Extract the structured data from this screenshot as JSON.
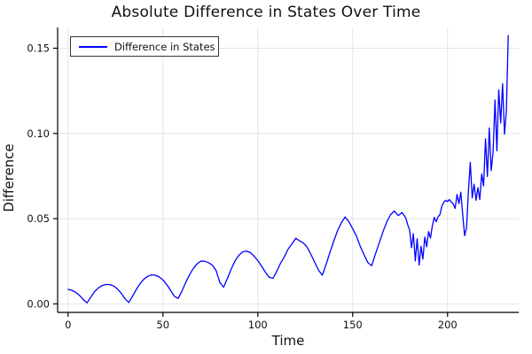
{
  "colors": {
    "line": "#0000ff",
    "grid": "#e4e4e4",
    "spine": "#000000",
    "text": "#111111",
    "background": "#ffffff",
    "legend_border": "#333333"
  },
  "chart_data": {
    "type": "line",
    "title": "Absolute Difference in States Over Time",
    "xlabel": "Time",
    "ylabel": "Difference",
    "xlim": [
      -5.5,
      237.5
    ],
    "ylim": [
      -0.005,
      0.1622
    ],
    "grid": true,
    "legend_position": "top-left",
    "xticks": {
      "values": [
        0,
        50,
        100,
        150,
        200
      ],
      "labels": [
        "0",
        "50",
        "100",
        "150",
        "200"
      ]
    },
    "yticks": {
      "values": [
        0.0,
        0.05,
        0.1,
        0.15
      ],
      "labels": [
        "0.00",
        "0.05",
        "0.10",
        "0.15"
      ]
    },
    "series": [
      {
        "name": "Difference in States",
        "color": "#0000ff",
        "points": [
          [
            0,
            0.0085
          ],
          [
            2,
            0.008
          ],
          [
            4,
            0.0068
          ],
          [
            6,
            0.005
          ],
          [
            8,
            0.0026
          ],
          [
            10,
            0.0006
          ],
          [
            12,
            0.004
          ],
          [
            14,
            0.0072
          ],
          [
            16,
            0.0094
          ],
          [
            18,
            0.0108
          ],
          [
            20,
            0.0114
          ],
          [
            22,
            0.0113
          ],
          [
            24,
            0.0105
          ],
          [
            26,
            0.0088
          ],
          [
            28,
            0.0062
          ],
          [
            30,
            0.003
          ],
          [
            32,
            0.0008
          ],
          [
            34,
            0.0045
          ],
          [
            36,
            0.0085
          ],
          [
            38,
            0.012
          ],
          [
            40,
            0.0146
          ],
          [
            42,
            0.0162
          ],
          [
            44,
            0.017
          ],
          [
            46,
            0.0168
          ],
          [
            48,
            0.0158
          ],
          [
            50,
            0.014
          ],
          [
            52,
            0.0114
          ],
          [
            54,
            0.008
          ],
          [
            56,
            0.0045
          ],
          [
            58,
            0.0032
          ],
          [
            60,
            0.0075
          ],
          [
            62,
            0.0125
          ],
          [
            64,
            0.017
          ],
          [
            66,
            0.0208
          ],
          [
            68,
            0.0235
          ],
          [
            70,
            0.0251
          ],
          [
            72,
            0.025
          ],
          [
            74,
            0.0242
          ],
          [
            76,
            0.0228
          ],
          [
            78,
            0.0196
          ],
          [
            80,
            0.0125
          ],
          [
            82,
            0.0098
          ],
          [
            84,
            0.015
          ],
          [
            86,
            0.0205
          ],
          [
            88,
            0.0252
          ],
          [
            90,
            0.0285
          ],
          [
            92,
            0.0305
          ],
          [
            94,
            0.031
          ],
          [
            96,
            0.0302
          ],
          [
            98,
            0.028
          ],
          [
            100,
            0.0254
          ],
          [
            102,
            0.0222
          ],
          [
            104,
            0.0186
          ],
          [
            106,
            0.0156
          ],
          [
            108,
            0.015
          ],
          [
            110,
            0.0192
          ],
          [
            112,
            0.0238
          ],
          [
            114,
            0.0276
          ],
          [
            116,
            0.0322
          ],
          [
            118,
            0.0352
          ],
          [
            120,
            0.0385
          ],
          [
            122,
            0.037
          ],
          [
            124,
            0.0358
          ],
          [
            126,
            0.0332
          ],
          [
            128,
            0.029
          ],
          [
            130,
            0.0243
          ],
          [
            132,
            0.0198
          ],
          [
            134,
            0.0168
          ],
          [
            136,
            0.0232
          ],
          [
            138,
            0.0302
          ],
          [
            140,
            0.0368
          ],
          [
            142,
            0.0428
          ],
          [
            144,
            0.0475
          ],
          [
            146,
            0.051
          ],
          [
            148,
            0.0482
          ],
          [
            150,
            0.044
          ],
          [
            152,
            0.0398
          ],
          [
            154,
            0.0338
          ],
          [
            156,
            0.0288
          ],
          [
            158,
            0.0242
          ],
          [
            160,
            0.0224
          ],
          [
            162,
            0.0292
          ],
          [
            164,
            0.0358
          ],
          [
            166,
            0.0424
          ],
          [
            168,
            0.0482
          ],
          [
            170,
            0.0524
          ],
          [
            172,
            0.0545
          ],
          [
            174,
            0.0518
          ],
          [
            176,
            0.0536
          ],
          [
            178,
            0.0504
          ],
          [
            179,
            0.0465
          ],
          [
            180,
            0.0432
          ],
          [
            181,
            0.033
          ],
          [
            182,
            0.0412
          ],
          [
            183,
            0.0252
          ],
          [
            184,
            0.0382
          ],
          [
            185,
            0.0228
          ],
          [
            186,
            0.0338
          ],
          [
            187,
            0.0262
          ],
          [
            188,
            0.0392
          ],
          [
            189,
            0.0335
          ],
          [
            190,
            0.0424
          ],
          [
            191,
            0.0386
          ],
          [
            192,
            0.0458
          ],
          [
            193,
            0.0508
          ],
          [
            194,
            0.0482
          ],
          [
            195,
            0.0512
          ],
          [
            196,
            0.0524
          ],
          [
            197,
            0.0572
          ],
          [
            198,
            0.0596
          ],
          [
            199,
            0.0608
          ],
          [
            200,
            0.06
          ],
          [
            201,
            0.0612
          ],
          [
            202,
            0.0598
          ],
          [
            203,
            0.0586
          ],
          [
            204,
            0.056
          ],
          [
            205,
            0.0642
          ],
          [
            206,
            0.0588
          ],
          [
            207,
            0.0655
          ],
          [
            208,
            0.0522
          ],
          [
            209,
            0.04
          ],
          [
            210,
            0.0448
          ],
          [
            211,
            0.0662
          ],
          [
            212,
            0.083
          ],
          [
            213,
            0.0622
          ],
          [
            214,
            0.0702
          ],
          [
            215,
            0.0608
          ],
          [
            216,
            0.0682
          ],
          [
            217,
            0.0612
          ],
          [
            218,
            0.0762
          ],
          [
            219,
            0.0692
          ],
          [
            220,
            0.0968
          ],
          [
            221,
            0.0748
          ],
          [
            222,
            0.1032
          ],
          [
            223,
            0.0782
          ],
          [
            224,
            0.0892
          ],
          [
            225,
            0.1196
          ],
          [
            226,
            0.0898
          ],
          [
            227,
            0.1256
          ],
          [
            228,
            0.1062
          ],
          [
            229,
            0.1292
          ],
          [
            230,
            0.0996
          ],
          [
            231,
            0.1132
          ],
          [
            232,
            0.1575
          ]
        ]
      }
    ]
  }
}
